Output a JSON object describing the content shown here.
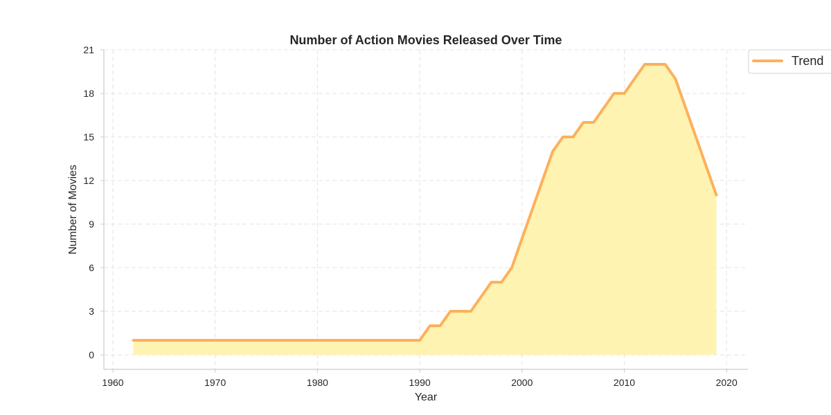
{
  "chart_data": {
    "type": "area",
    "title": "Number of Action Movies Released Over Time",
    "xlabel": "Year",
    "ylabel": "Number of Movies",
    "xlim": [
      1959,
      2022
    ],
    "ylim": [
      -1,
      21
    ],
    "xticks": [
      1960,
      1970,
      1980,
      1990,
      2000,
      2010,
      2020
    ],
    "yticks": [
      0,
      3,
      6,
      9,
      12,
      15,
      18,
      21
    ],
    "grid": true,
    "legend_position": "outside top-right",
    "series": [
      {
        "name": "Trend",
        "line_color": "#fdb05c",
        "fill_color": "#fff2ad",
        "x": [
          1962,
          1990,
          1991,
          1992,
          1993,
          1994,
          1995,
          1996,
          1997,
          1998,
          1999,
          2000,
          2001,
          2002,
          2003,
          2004,
          2005,
          2006,
          2007,
          2008,
          2009,
          2010,
          2011,
          2012,
          2013,
          2014,
          2015,
          2016,
          2017,
          2018,
          2019
        ],
        "y": [
          1,
          1,
          2,
          2,
          3,
          3,
          3,
          4,
          5,
          5,
          6,
          8,
          10,
          12,
          14,
          15,
          15,
          16,
          16,
          17,
          18,
          18,
          19,
          20,
          20,
          20,
          19,
          17,
          15,
          13,
          11
        ]
      }
    ]
  }
}
